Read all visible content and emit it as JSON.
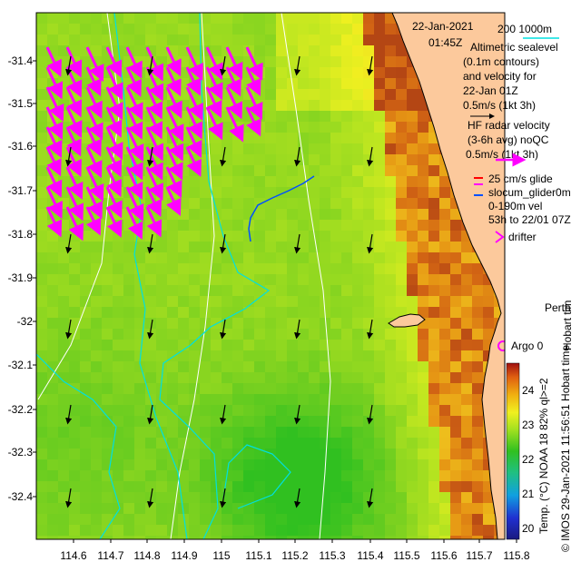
{
  "header": {
    "date": "22-Jan-2021",
    "time": "01:45Z"
  },
  "legend": {
    "depth_contours": "200  1000m",
    "altimetric_lines": [
      "Altimetric sealevel",
      "(0.1m contours)",
      "and velocity for",
      "22-Jan 01Z",
      "0.5m/s (1kt 3h)"
    ],
    "hf_radar_lines": [
      "HF radar velocity",
      "(3-6h avg) noQC",
      "0.5m/s (1kt 3h)"
    ],
    "glider_lines": [
      "25 cm/s glide",
      "slocum_glider0m",
      "0-190m vel",
      "53h to 22/01 07Z"
    ],
    "drifter": "drifter",
    "argo": "Argo 0",
    "city": "Perth",
    "hobart": "Hobart tim"
  },
  "axes": {
    "x_ticks": [
      "114.6",
      "114.7",
      "114.8",
      "114.9",
      "115",
      "115.1",
      "115.2",
      "115.3",
      "115.4",
      "115.5",
      "115.6",
      "115.7",
      "115.8"
    ],
    "y_ticks": [
      "-31.4",
      "-31.5",
      "-31.6",
      "-31.7",
      "-31.8",
      "-31.9",
      "-32",
      "-32.1",
      "-32.2",
      "-32.3",
      "-32.4"
    ]
  },
  "colorbar": {
    "ticks": [
      "20",
      "21",
      "22",
      "23",
      "24"
    ],
    "label": "Temp. (°C) NOAA 18 82% ql>=2"
  },
  "credit": "© IMOS 29-Jan-2021 11:56:51 Hobart time",
  "map_extent": {
    "lon": [
      114.52,
      115.82
    ],
    "lat": [
      -32.5,
      -31.33
    ]
  },
  "colors": {
    "land": "#fcc99c",
    "hf_radar": "#ff00ff",
    "altimetry_contour": "#00e0e0",
    "depth_contour": "#ffffff",
    "glider": "#0050ff"
  }
}
